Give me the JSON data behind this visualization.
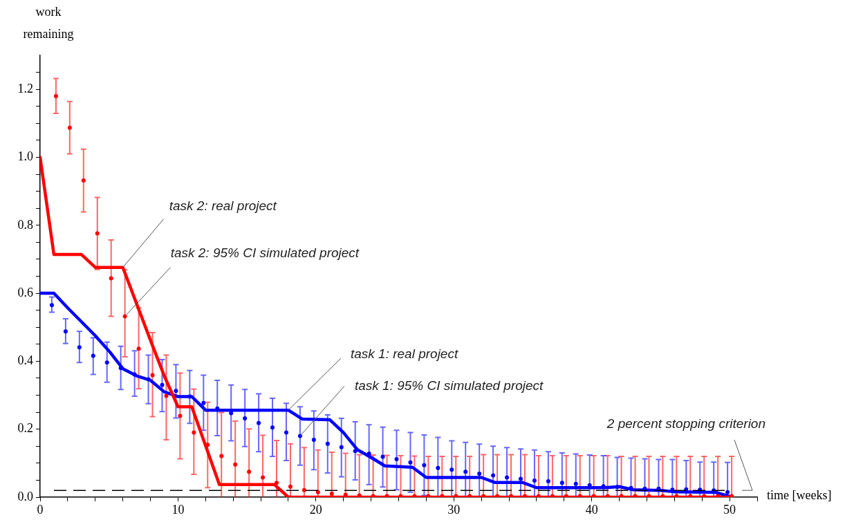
{
  "chart_data": {
    "type": "line",
    "xlabel": "time [weeks]",
    "ylabel": "work remaining",
    "xlim": [
      0,
      52
    ],
    "ylim": [
      0,
      1.3
    ],
    "xticks": [
      0,
      {
        "value": 2,
        "label": null
      },
      {
        "value": 4,
        "label": null
      },
      {
        "value": 6,
        "label": null
      },
      {
        "value": 8,
        "label": null
      },
      10,
      {
        "value": 12,
        "label": null
      },
      {
        "value": 14,
        "label": null
      },
      {
        "value": 16,
        "label": null
      },
      {
        "value": 18,
        "label": null
      },
      20,
      {
        "value": 22,
        "label": null
      },
      {
        "value": 24,
        "label": null
      },
      {
        "value": 26,
        "label": null
      },
      {
        "value": 28,
        "label": null
      },
      30,
      {
        "value": 32,
        "label": null
      },
      {
        "value": 34,
        "label": null
      },
      {
        "value": 36,
        "label": null
      },
      {
        "value": 38,
        "label": null
      },
      40,
      {
        "value": 42,
        "label": null
      },
      {
        "value": 44,
        "label": null
      },
      {
        "value": 46,
        "label": null
      },
      {
        "value": 48,
        "label": null
      },
      50,
      {
        "value": 52,
        "label": null
      }
    ],
    "yticks": [
      {
        "value": 0,
        "label": "0.0"
      },
      {
        "value": 0.05,
        "label": null
      },
      {
        "value": 0.1,
        "label": null
      },
      {
        "value": 0.15,
        "label": null
      },
      {
        "value": 0.2,
        "label": "0.2"
      },
      {
        "value": 0.25,
        "label": null
      },
      {
        "value": 0.3,
        "label": null
      },
      {
        "value": 0.35,
        "label": null
      },
      {
        "value": 0.4,
        "label": "0.4"
      },
      {
        "value": 0.45,
        "label": null
      },
      {
        "value": 0.5,
        "label": null
      },
      {
        "value": 0.55,
        "label": null
      },
      {
        "value": 0.6,
        "label": "0.6"
      },
      {
        "value": 0.65,
        "label": null
      },
      {
        "value": 0.7,
        "label": null
      },
      {
        "value": 0.75,
        "label": null
      },
      {
        "value": 0.8,
        "label": "0.8"
      },
      {
        "value": 0.85,
        "label": null
      },
      {
        "value": 0.9,
        "label": null
      },
      {
        "value": 0.95,
        "label": null
      },
      {
        "value": 1.0,
        "label": "1.0"
      },
      {
        "value": 1.05,
        "label": null
      },
      {
        "value": 1.1,
        "label": null
      },
      {
        "value": 1.15,
        "label": null
      },
      {
        "value": 1.2,
        "label": "1.2"
      },
      {
        "value": 1.25,
        "label": null
      }
    ],
    "grid": false,
    "legend": false,
    "series": [
      {
        "type": "scatter",
        "color": "#ff0000",
        "marker": "circle",
        "x": [
          1.15,
          2.15,
          3.15,
          4.15,
          5.15,
          6.15,
          7.15,
          8.15,
          9.15,
          10.15,
          11.15,
          12.15,
          13.15,
          14.15,
          15.15,
          16.15,
          17.15,
          18.15,
          19.15,
          20.15,
          21.15,
          22.15,
          23.15,
          24.15,
          25.15,
          26.15,
          27.15,
          28.15,
          29.15,
          30.15,
          31.15,
          32.15,
          33.15,
          34.15,
          35.15,
          36.15,
          37.15,
          38.15,
          39.15,
          40.15,
          41.15,
          42.15,
          43.15,
          44.15,
          45.15,
          46.15,
          47.15,
          48.15,
          49.15,
          50.15
        ],
        "values": [
          1.18,
          1.087,
          0.932,
          0.776,
          0.644,
          0.532,
          0.437,
          0.359,
          0.298,
          0.239,
          0.19,
          0.154,
          0.121,
          0.096,
          0.075,
          0.058,
          0.042,
          0.031,
          0.021,
          0.015,
          0.01,
          0.007,
          0.005,
          0.003,
          0.003,
          0.003,
          0.003,
          0.003,
          0.003,
          0.003,
          0.003,
          0.003,
          0.003,
          0.003,
          0.003,
          0.003,
          0.003,
          0.003,
          0.003,
          0.003,
          0.003,
          0.003,
          0.003,
          0.003,
          0.003,
          0.003,
          0.003,
          0.003,
          0.003,
          0.003
        ],
        "errors": [
          [
            1.129,
            1.232
          ],
          [
            1.01,
            1.164
          ],
          [
            0.839,
            1.024
          ],
          [
            0.67,
            0.882
          ],
          [
            0.532,
            0.757
          ],
          [
            0.413,
            0.669
          ],
          [
            0.319,
            0.557
          ],
          [
            0.237,
            0.484
          ],
          [
            0.169,
            0.418
          ],
          [
            0.113,
            0.365
          ],
          [
            0.067,
            0.318
          ],
          [
            0.028,
            0.279
          ],
          [
            0,
            0.249
          ],
          [
            0,
            0.224
          ],
          [
            0,
            0.201
          ],
          [
            0,
            0.182
          ],
          [
            0,
            0.167
          ],
          [
            0,
            0.157
          ],
          [
            0,
            0.146
          ],
          [
            0,
            0.139
          ],
          [
            0,
            0.132
          ],
          [
            0,
            0.129
          ],
          [
            0,
            0.125
          ],
          [
            0,
            0.124
          ],
          [
            0,
            0.123
          ],
          [
            0,
            0.122
          ],
          [
            0,
            0.121
          ],
          [
            0,
            0.12
          ],
          [
            0,
            0.12
          ],
          [
            0,
            0.12
          ],
          [
            0,
            0.12
          ],
          [
            0,
            0.125
          ],
          [
            0,
            0.125
          ],
          [
            0,
            0.125
          ],
          [
            0,
            0.125
          ],
          [
            0,
            0.122
          ],
          [
            0,
            0.122
          ],
          [
            0,
            0.122
          ],
          [
            0,
            0.122
          ],
          [
            0,
            0.122
          ],
          [
            0,
            0.122
          ],
          [
            0,
            0.12
          ],
          [
            0,
            0.12
          ],
          [
            0,
            0.12
          ],
          [
            0,
            0.12
          ],
          [
            0,
            0.12
          ],
          [
            0,
            0.12
          ],
          [
            0,
            0.12
          ],
          [
            0,
            0.12
          ],
          [
            0,
            0.12
          ]
        ]
      },
      {
        "type": "scatter",
        "color": "#0000ff",
        "marker": "circle",
        "x": [
          0.85,
          1.85,
          2.85,
          3.85,
          4.85,
          5.85,
          6.85,
          7.85,
          8.85,
          9.85,
          10.85,
          11.85,
          12.85,
          13.85,
          14.85,
          15.85,
          16.85,
          17.85,
          18.85,
          19.85,
          20.85,
          21.85,
          22.85,
          23.85,
          24.85,
          25.85,
          26.85,
          27.85,
          28.85,
          29.85,
          30.85,
          31.85,
          32.85,
          33.85,
          34.85,
          35.85,
          36.85,
          37.85,
          38.85,
          39.85,
          40.85,
          41.85,
          42.85,
          43.85,
          44.85,
          45.85,
          46.85,
          47.85,
          48.85,
          49.85
        ],
        "values": [
          0.565,
          0.488,
          0.441,
          0.416,
          0.396,
          0.38,
          0.361,
          0.347,
          0.33,
          0.313,
          0.296,
          0.277,
          0.261,
          0.247,
          0.232,
          0.218,
          0.205,
          0.19,
          0.18,
          0.169,
          0.157,
          0.147,
          0.136,
          0.128,
          0.119,
          0.112,
          0.102,
          0.094,
          0.086,
          0.081,
          0.075,
          0.069,
          0.064,
          0.058,
          0.054,
          0.049,
          0.047,
          0.042,
          0.039,
          0.035,
          0.032,
          0.03,
          0.027,
          0.025,
          0.025,
          0.022,
          0.023,
          0.022,
          0.02,
          0.015
        ],
        "errors": [
          [
            0.544,
            0.589
          ],
          [
            0.452,
            0.525
          ],
          [
            0.396,
            0.488
          ],
          [
            0.361,
            0.469
          ],
          [
            0.338,
            0.456
          ],
          [
            0.317,
            0.444
          ],
          [
            0.297,
            0.431
          ],
          [
            0.275,
            0.418
          ],
          [
            0.252,
            0.405
          ],
          [
            0.233,
            0.39
          ],
          [
            0.217,
            0.373
          ],
          [
            0.197,
            0.359
          ],
          [
            0.181,
            0.344
          ],
          [
            0.166,
            0.33
          ],
          [
            0.149,
            0.317
          ],
          [
            0.134,
            0.304
          ],
          [
            0.12,
            0.291
          ],
          [
            0.108,
            0.276
          ],
          [
            0.094,
            0.266
          ],
          [
            0.081,
            0.254
          ],
          [
            0.071,
            0.242
          ],
          [
            0.06,
            0.232
          ],
          [
            0.051,
            0.222
          ],
          [
            0.037,
            0.213
          ],
          [
            0.03,
            0.206
          ],
          [
            0.022,
            0.197
          ],
          [
            0.015,
            0.19
          ],
          [
            0.005,
            0.183
          ],
          [
            0,
            0.176
          ],
          [
            0,
            0.166
          ],
          [
            0,
            0.161
          ],
          [
            0,
            0.156
          ],
          [
            0,
            0.15
          ],
          [
            0,
            0.146
          ],
          [
            0,
            0.142
          ],
          [
            0,
            0.139
          ],
          [
            0,
            0.134
          ],
          [
            0,
            0.13
          ],
          [
            0,
            0.127
          ],
          [
            0,
            0.124
          ],
          [
            0,
            0.122
          ],
          [
            0,
            0.117
          ],
          [
            0,
            0.115
          ],
          [
            0,
            0.113
          ],
          [
            0,
            0.111
          ],
          [
            0,
            0.111
          ],
          [
            0,
            0.108
          ],
          [
            0,
            0.103
          ],
          [
            0,
            0.103
          ],
          [
            0,
            0.102
          ]
        ]
      },
      {
        "color": "#ff0000",
        "marker": "none",
        "x": [
          0,
          1,
          3,
          4,
          6,
          8,
          9,
          10,
          11,
          13,
          17,
          18,
          50
        ],
        "values": [
          1.0,
          0.714,
          0.714,
          0.676,
          0.676,
          0.462,
          0.357,
          0.266,
          0.266,
          0.037,
          0.037,
          0,
          0
        ]
      },
      {
        "color": "#0000ff",
        "marker": "none",
        "x": [
          0,
          1,
          2,
          4,
          5,
          6,
          7,
          8,
          9,
          10,
          11,
          12,
          18,
          19,
          21,
          22,
          23,
          24,
          25,
          27,
          28,
          32,
          33,
          35,
          36,
          41,
          42,
          43,
          45,
          46,
          49,
          50
        ],
        "values": [
          0.6,
          0.6,
          0.557,
          0.475,
          0.43,
          0.378,
          0.357,
          0.344,
          0.31,
          0.296,
          0.296,
          0.256,
          0.256,
          0.23,
          0.228,
          0.19,
          0.14,
          0.117,
          0.092,
          0.088,
          0.058,
          0.058,
          0.043,
          0.043,
          0.028,
          0.028,
          0.031,
          0.022,
          0.02,
          0.016,
          0.014,
          0.002
        ]
      }
    ],
    "ref_lines": [
      {
        "axis": "y",
        "value": 0.02,
        "label": "2 percent stopping criterion",
        "color": "#000000",
        "line_style": "dashed"
      }
    ],
    "annotations": [
      {
        "text": "task 2: real project",
        "x": 6,
        "y": 0.676
      },
      {
        "text": "task 2: 95% CI simulated project",
        "x": 6.15,
        "y": 0.532
      },
      {
        "text": "task 1: real project",
        "x": 18,
        "y": 0.256
      },
      {
        "text": "task 1: 95% CI simulated project",
        "x": 18.85,
        "y": 0.18
      }
    ]
  }
}
